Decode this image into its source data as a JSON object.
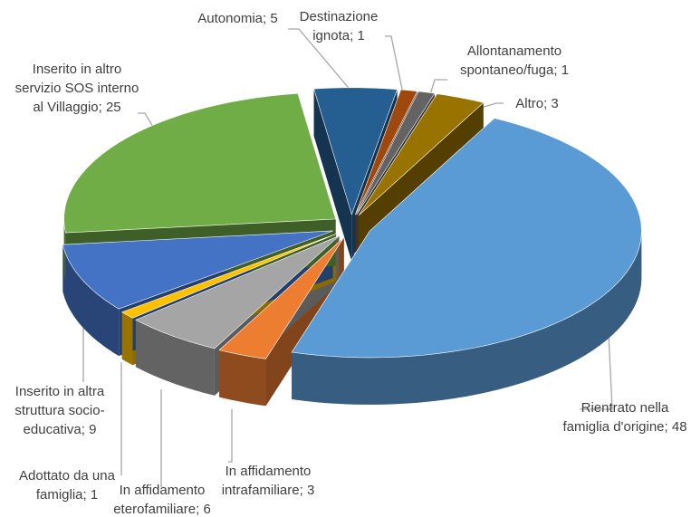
{
  "chart_data": {
    "type": "pie3d",
    "categories": [
      "Autonomia",
      "Destinazione ignota",
      "Allontanamento spontaneo/fuga",
      "Altro",
      "Rientrato nella famiglia d'origine",
      "In affidamento intrafamiliare",
      "In affidamento eterofamiliare",
      "Adottato da una famiglia",
      "Inserito in altra struttura socio-educativa",
      "Inserito in altro servizio SOS interno al Villaggio"
    ],
    "values": [
      5,
      1,
      1,
      3,
      48,
      3,
      6,
      1,
      9,
      25
    ],
    "colors": [
      "#255e91",
      "#9e480e",
      "#636363",
      "#997300",
      "#5b9bd5",
      "#ed7d31",
      "#a5a5a5",
      "#ffc000",
      "#4472c4",
      "#70ad47"
    ],
    "label_separator": "; "
  }
}
